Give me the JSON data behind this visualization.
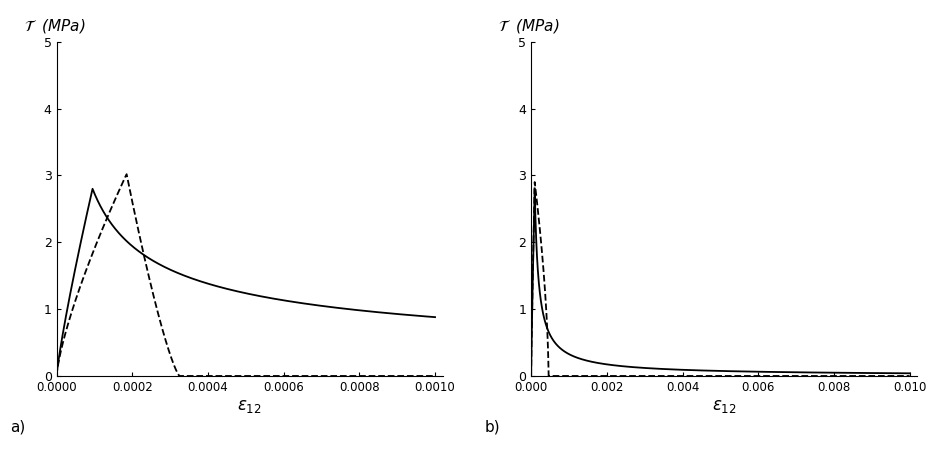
{
  "fig_width": 9.44,
  "fig_height": 4.53,
  "dpi": 100,
  "background_color": "#ffffff",
  "subplot_a": {
    "xlim": [
      0.0,
      0.00102
    ],
    "ylim": [
      0.0,
      5.0
    ],
    "xticks": [
      0.0,
      0.0002,
      0.0004,
      0.0006,
      0.0008,
      0.001
    ],
    "xtick_labels": [
      "0.0000",
      "0.0002",
      "0.0004",
      "0.0006",
      "0.0008",
      "0.0010"
    ],
    "yticks": [
      0,
      1,
      2,
      3,
      4,
      5
    ],
    "xlabel": "epsilon_12",
    "label": "a)"
  },
  "subplot_b": {
    "xlim": [
      0.0,
      0.0102
    ],
    "ylim": [
      0.0,
      5.0
    ],
    "xticks": [
      0.0,
      0.002,
      0.004,
      0.006,
      0.008,
      0.01
    ],
    "xtick_labels": [
      "0.000",
      "0.002",
      "0.004",
      "0.006",
      "0.008",
      "0.010"
    ],
    "yticks": [
      0,
      1,
      2,
      3,
      4,
      5
    ],
    "xlabel": "epsilon_12",
    "label": "b)"
  },
  "line_color": "#000000",
  "line_width": 1.3,
  "ylabel_text": "T  (MPa)"
}
